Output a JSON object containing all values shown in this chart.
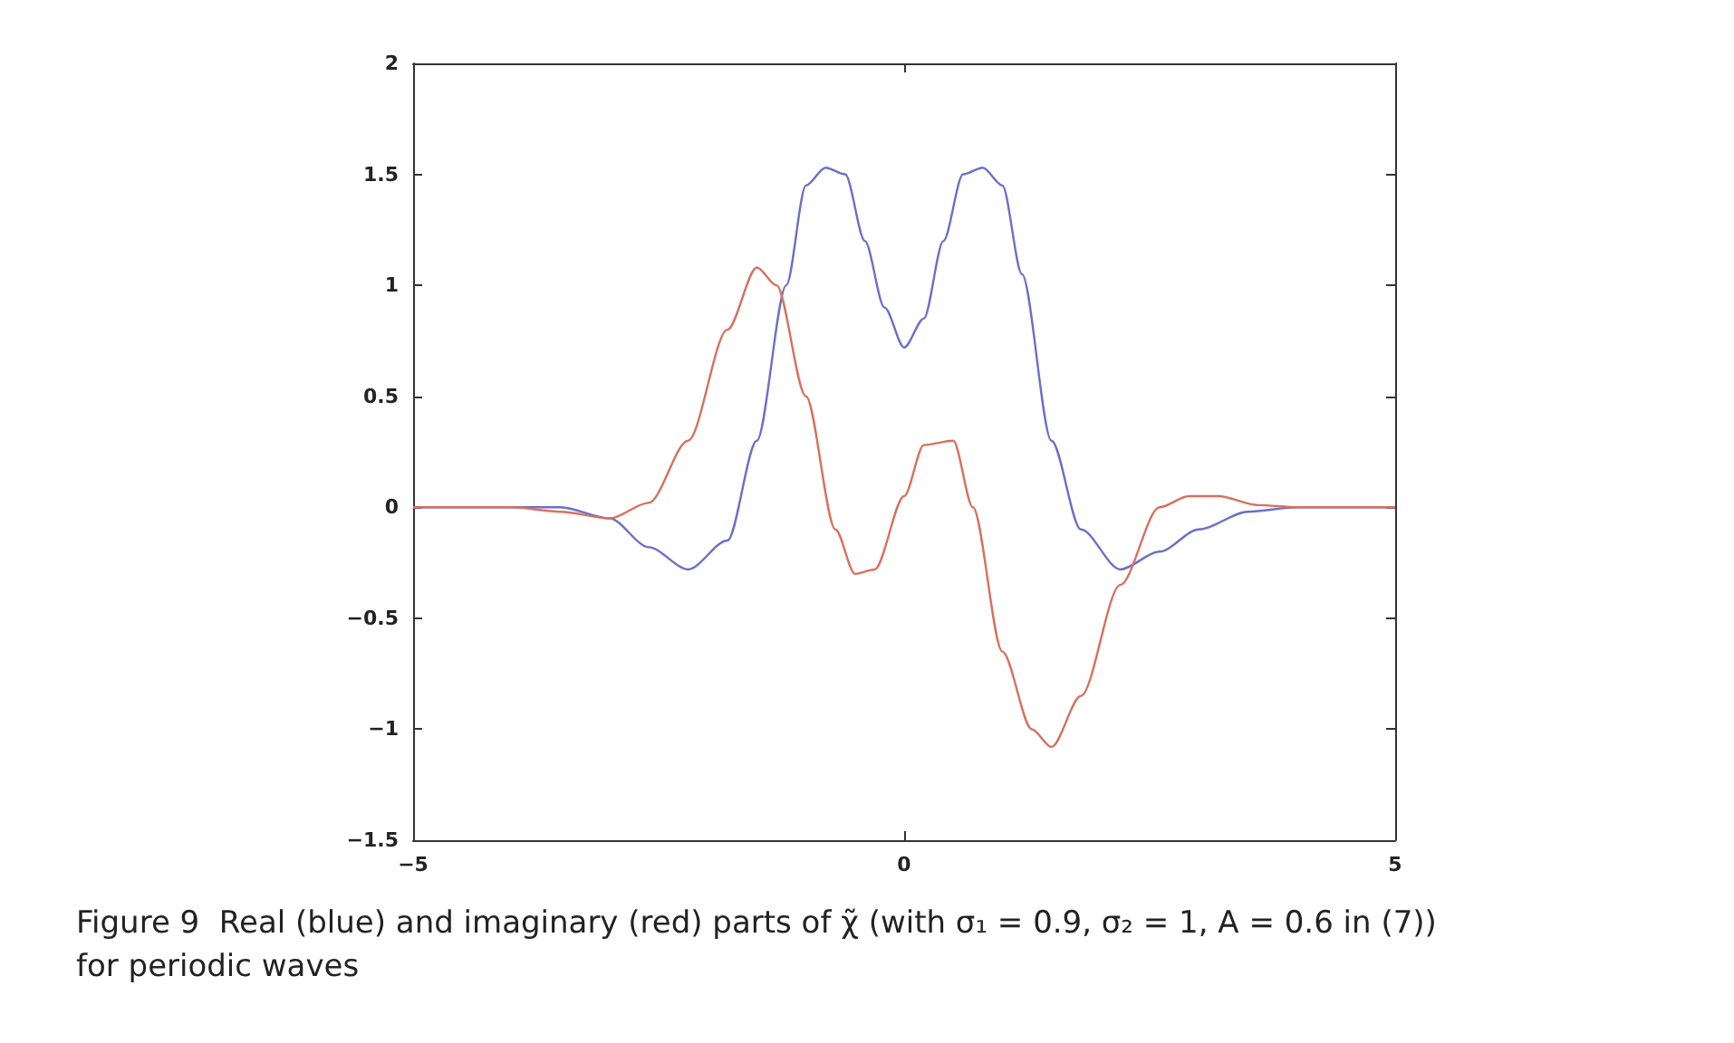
{
  "chart_data": {
    "type": "line",
    "xlim": [
      -5,
      5
    ],
    "xticks": [
      -5,
      0,
      5
    ],
    "ylim": [
      -1.5,
      2
    ],
    "yticks": [
      -1.5,
      -1,
      -0.5,
      0,
      0.5,
      1,
      1.5,
      2
    ],
    "grid": false,
    "marker": "none",
    "line_style": "solid",
    "annotations": [
      "Figure 9  Real (blue) and imaginary (red) parts of χ̃ (with σ₁ = 0.9, σ₂ = 1, A = 0.6 in (7)) for periodic waves"
    ],
    "series": [
      {
        "color": "#6a70c8",
        "x": [
          -5,
          -4,
          -3.5,
          -3,
          -2.6,
          -2.2,
          -1.8,
          -1.5,
          -1.2,
          -1,
          -0.8,
          -0.6,
          -0.4,
          -0.2,
          0,
          0.2,
          0.4,
          0.6,
          0.8,
          1,
          1.2,
          1.5,
          1.8,
          2.2,
          2.6,
          3,
          3.5,
          4,
          5
        ],
        "values": [
          0,
          0,
          0,
          -0.05,
          -0.18,
          -0.28,
          -0.15,
          0.3,
          1.0,
          1.45,
          1.53,
          1.5,
          1.2,
          0.9,
          0.72,
          0.85,
          1.2,
          1.5,
          1.53,
          1.45,
          1.05,
          0.3,
          -0.1,
          -0.28,
          -0.2,
          -0.1,
          -0.02,
          0,
          0
        ]
      },
      {
        "color": "#d8705e",
        "x": [
          -5,
          -4,
          -3.5,
          -3,
          -2.6,
          -2.2,
          -1.8,
          -1.5,
          -1.3,
          -1,
          -0.7,
          -0.5,
          -0.3,
          0,
          0.2,
          0.5,
          0.7,
          1,
          1.3,
          1.5,
          1.8,
          2.2,
          2.6,
          2.9,
          3.2,
          3.6,
          4,
          5
        ],
        "values": [
          0,
          0,
          -0.02,
          -0.05,
          0.02,
          0.3,
          0.8,
          1.08,
          1.0,
          0.5,
          -0.1,
          -0.3,
          -0.28,
          0.05,
          0.28,
          0.3,
          0,
          -0.65,
          -1.0,
          -1.08,
          -0.85,
          -0.35,
          0,
          0.05,
          0.05,
          0.01,
          0,
          0
        ]
      }
    ]
  }
}
